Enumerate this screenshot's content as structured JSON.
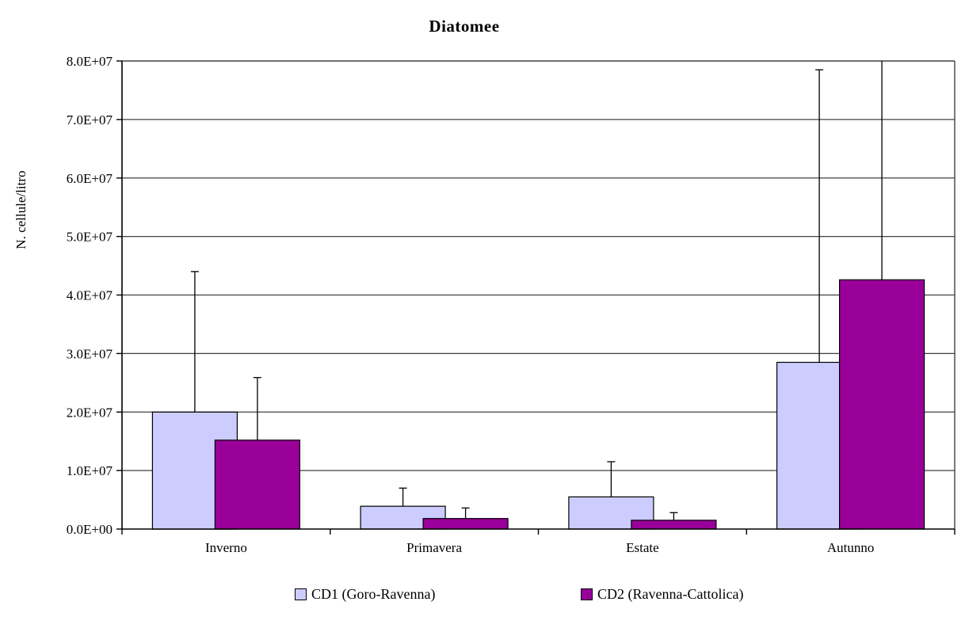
{
  "chart_data": {
    "type": "bar",
    "title": "Diatomee",
    "ylabel": "N. cellule/litro",
    "xlabel": "",
    "categories": [
      "Inverno",
      "Primavera",
      "Estate",
      "Autunno"
    ],
    "series": [
      {
        "name": "CD1 (Goro-Ravenna)",
        "color": "#CCCCFF",
        "values": [
          20000000,
          3900000,
          5500000,
          28500000
        ],
        "errors": [
          24000000,
          3100000,
          6000000,
          50000000
        ],
        "error_clipped": [
          false,
          false,
          false,
          false
        ]
      },
      {
        "name": "CD2 (Ravenna-Cattolica)",
        "color": "#990099",
        "values": [
          15200000,
          1800000,
          1500000,
          42600000
        ],
        "errors": [
          10700000,
          1800000,
          1300000,
          40000000
        ],
        "error_clipped": [
          false,
          false,
          false,
          true
        ]
      }
    ],
    "ylim": [
      0,
      80000000
    ],
    "ytick_step": 10000000,
    "ytick_labels": [
      "0.0E+00",
      "1.0E+07",
      "2.0E+07",
      "3.0E+07",
      "4.0E+07",
      "5.0E+07",
      "6.0E+07",
      "7.0E+07",
      "8.0E+07"
    ],
    "grid": true,
    "grid_color": "#404040",
    "axis_color": "#000000",
    "bar_border_color": "#000000",
    "error_bar_color": "#000000",
    "legend_position": "bottom"
  }
}
